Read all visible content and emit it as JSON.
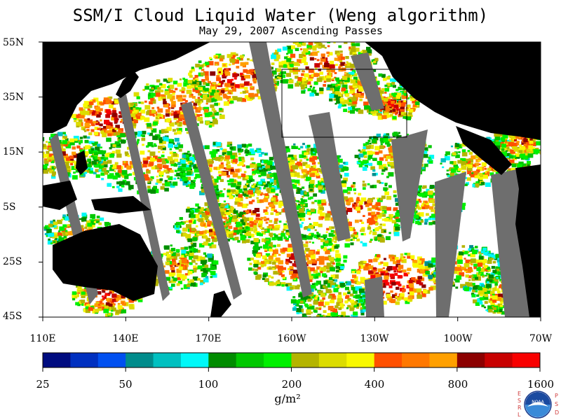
{
  "title": "SSM/I Cloud Liquid Water (Weng algorithm)",
  "subtitle": "May 29, 2007  Ascending Passes",
  "lat_labels": [
    "55N",
    "35N",
    "15N",
    "5S",
    "25S",
    "45S"
  ],
  "lon_labels": [
    "110E",
    "140E",
    "170E",
    "160W",
    "130W",
    "100W",
    "70W"
  ],
  "colorbar": {
    "colors": [
      "#000c80",
      "#0030c0",
      "#0050f0",
      "#008c8c",
      "#00c0c0",
      "#00f8f8",
      "#008c00",
      "#00c800",
      "#00f000",
      "#b4b400",
      "#dcdc00",
      "#f8f800",
      "#ff5000",
      "#ff7800",
      "#ffa000",
      "#8c0000",
      "#c80000",
      "#f80000"
    ],
    "tick_labels": [
      "25",
      "50",
      "100",
      "200",
      "400",
      "800",
      "1600"
    ],
    "unit": "g/m²"
  },
  "colors": {
    "land": "#000000",
    "no_data": "#6e6e6e",
    "background": "#ffffff"
  },
  "logo": {
    "left_letters": "ESRL",
    "right_letters": "PSD",
    "center_text": "NOAA"
  }
}
